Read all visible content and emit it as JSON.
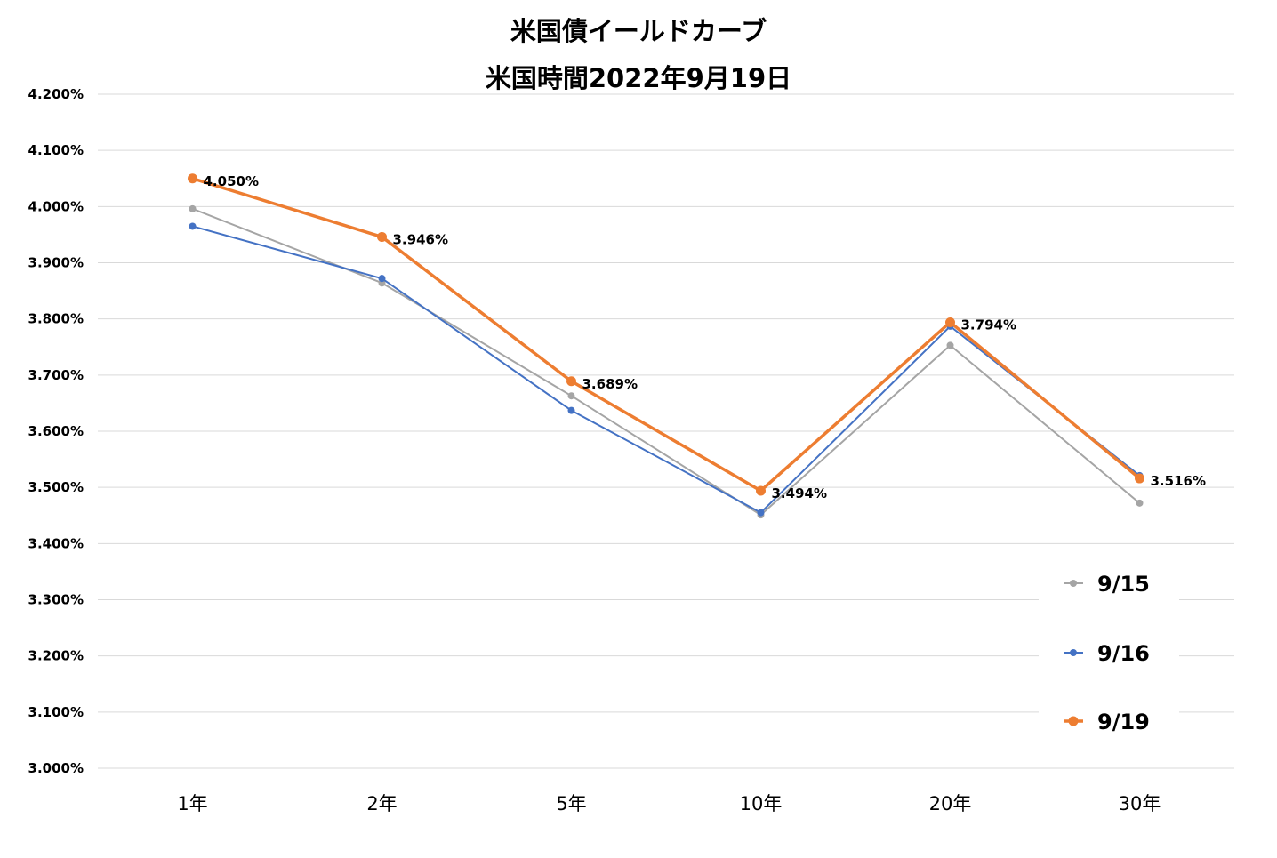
{
  "chart_data": {
    "type": "line",
    "title": "米国債イールドカーブ",
    "subtitle": "米国時間2022年9月19日",
    "categories": [
      "1年",
      "2年",
      "5年",
      "10年",
      "20年",
      "30年"
    ],
    "ylim": [
      3.0,
      4.2
    ],
    "yticks": [
      "4.200%",
      "4.100%",
      "4.000%",
      "3.900%",
      "3.800%",
      "3.700%",
      "3.600%",
      "3.500%",
      "3.400%",
      "3.300%",
      "3.200%",
      "3.100%",
      "3.000%"
    ],
    "grid": true,
    "legend_position": "right",
    "series": [
      {
        "name": "9/15",
        "color": "#a5a5a5",
        "values": [
          3.996,
          3.864,
          3.663,
          3.451,
          3.753,
          3.472
        ]
      },
      {
        "name": "9/16",
        "color": "#4472c4",
        "values": [
          3.965,
          3.872,
          3.637,
          3.455,
          3.787,
          3.521
        ]
      },
      {
        "name": "9/19",
        "color": "#ed7d31",
        "values": [
          4.05,
          3.946,
          3.689,
          3.494,
          3.794,
          3.516
        ],
        "data_labels": [
          "4.050%",
          "3.946%",
          "3.689%",
          "3.494%",
          "3.794%",
          "3.516%"
        ]
      }
    ]
  }
}
